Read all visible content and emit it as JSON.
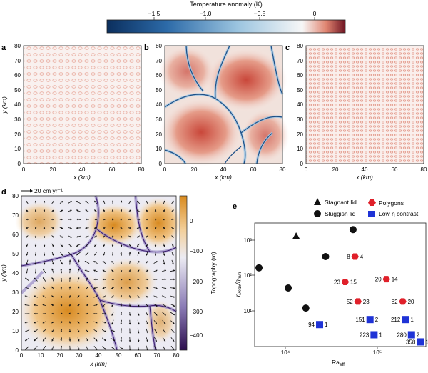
{
  "colorbar": {
    "title": "Temperature anomaly (K)",
    "ticks": [
      "−1.5",
      "−1.0",
      "−0.5",
      "0"
    ],
    "colors": [
      "#0b2f5e",
      "#2c6aa8",
      "#9cc5e0",
      "#f7f7f7",
      "#e08470",
      "#b52a2a"
    ]
  },
  "panel_a": {
    "label": "a",
    "xlabel": "x (km)",
    "ylabel": "y (km)",
    "xticks": [
      "0",
      "20",
      "40",
      "60",
      "80"
    ],
    "yticks": [
      "0",
      "10",
      "20",
      "30",
      "40",
      "50",
      "60",
      "70",
      "80"
    ]
  },
  "panel_b": {
    "label": "b",
    "xlabel": "x (km)",
    "xticks": [
      "0",
      "20",
      "40",
      "60",
      "80"
    ],
    "yticks": [
      "0",
      "10",
      "20",
      "30",
      "40",
      "50",
      "60",
      "70",
      "80"
    ]
  },
  "panel_c": {
    "label": "c",
    "xlabel": "x (km)",
    "xticks": [
      "0",
      "20",
      "40",
      "60",
      "80"
    ],
    "yticks": [
      "0",
      "10",
      "20",
      "30",
      "40",
      "50",
      "60",
      "70",
      "80"
    ]
  },
  "panel_d": {
    "label": "d",
    "scale_arrow_label": "20 cm yr⁻¹",
    "xlabel": "x (km)",
    "ylabel": "y (km)",
    "xticks": [
      "0",
      "10",
      "20",
      "30",
      "40",
      "50",
      "60",
      "70",
      "80"
    ],
    "yticks": [
      "0",
      "10",
      "20",
      "30",
      "40",
      "50",
      "60",
      "70",
      "80"
    ],
    "colorbar_label": "Topography (m)",
    "colorbar_ticks": [
      "0",
      "−100",
      "−200",
      "−300",
      "−400"
    ],
    "colors": [
      "#d98a1e",
      "#f3cf9a",
      "#ecebf3",
      "#8a7bb5",
      "#2d0f4e"
    ]
  },
  "panel_e": {
    "label": "e",
    "legend": {
      "stagnant": "Stagnant lid",
      "sluggish": "Sluggish lid",
      "polygons": "Polygons",
      "low": "Low η contrast"
    },
    "xlabel": "Ra",
    "xlabel_sub": "eff",
    "ylabel": "η",
    "ylabel_sub1": "max",
    "ylabel_mid": "/η",
    "ylabel_sub2": "min",
    "xticks": [
      "10⁴",
      "10⁵"
    ],
    "yticks": [
      "10¹",
      "10²",
      "10³"
    ],
    "colors": {
      "polygon": "#e0202a",
      "low": "#1f33d6",
      "lid": "#111111"
    }
  },
  "chart_data": {
    "type": "scatter",
    "xscale": "log",
    "yscale": "log",
    "xlim": [
      5000,
      220000
    ],
    "ylim": [
      1.5,
      3000
    ],
    "series": [
      {
        "name": "Stagnant lid",
        "points": [
          {
            "x": 12500,
            "y": 1300
          }
        ]
      },
      {
        "name": "Sluggish lid",
        "points": [
          {
            "x": 5500,
            "y": 190
          },
          {
            "x": 10500,
            "y": 55
          },
          {
            "x": 15500,
            "y": 16
          },
          {
            "x": 24000,
            "y": 380
          },
          {
            "x": 44000,
            "y": 2000
          }
        ]
      },
      {
        "name": "Polygons",
        "points": [
          {
            "x": 46000,
            "y": 380,
            "label_left": "8",
            "label_right": "4"
          },
          {
            "x": 37000,
            "y": 80,
            "label_left": "23",
            "label_right": "15"
          },
          {
            "x": 92000,
            "y": 95,
            "label_left": "20",
            "label_right": "14"
          },
          {
            "x": 49000,
            "y": 24,
            "label_left": "52",
            "label_right": "23"
          },
          {
            "x": 132000,
            "y": 24,
            "label_left": "82",
            "label_right": "20"
          }
        ]
      },
      {
        "name": "Low η contrast",
        "points": [
          {
            "x": 21000,
            "y": 5.8,
            "label_left": "94",
            "label_right": "1"
          },
          {
            "x": 64000,
            "y": 7.9,
            "label_left": "151",
            "label_right": "2"
          },
          {
            "x": 140000,
            "y": 7.9,
            "label_left": "212",
            "label_right": "1"
          },
          {
            "x": 70000,
            "y": 3.1,
            "label_left": "223",
            "label_right": "1"
          },
          {
            "x": 160000,
            "y": 3.1,
            "label_left": "280",
            "label_right": "2"
          },
          {
            "x": 195000,
            "y": 2.0,
            "label_left": "358",
            "label_right": "1"
          }
        ]
      }
    ]
  }
}
